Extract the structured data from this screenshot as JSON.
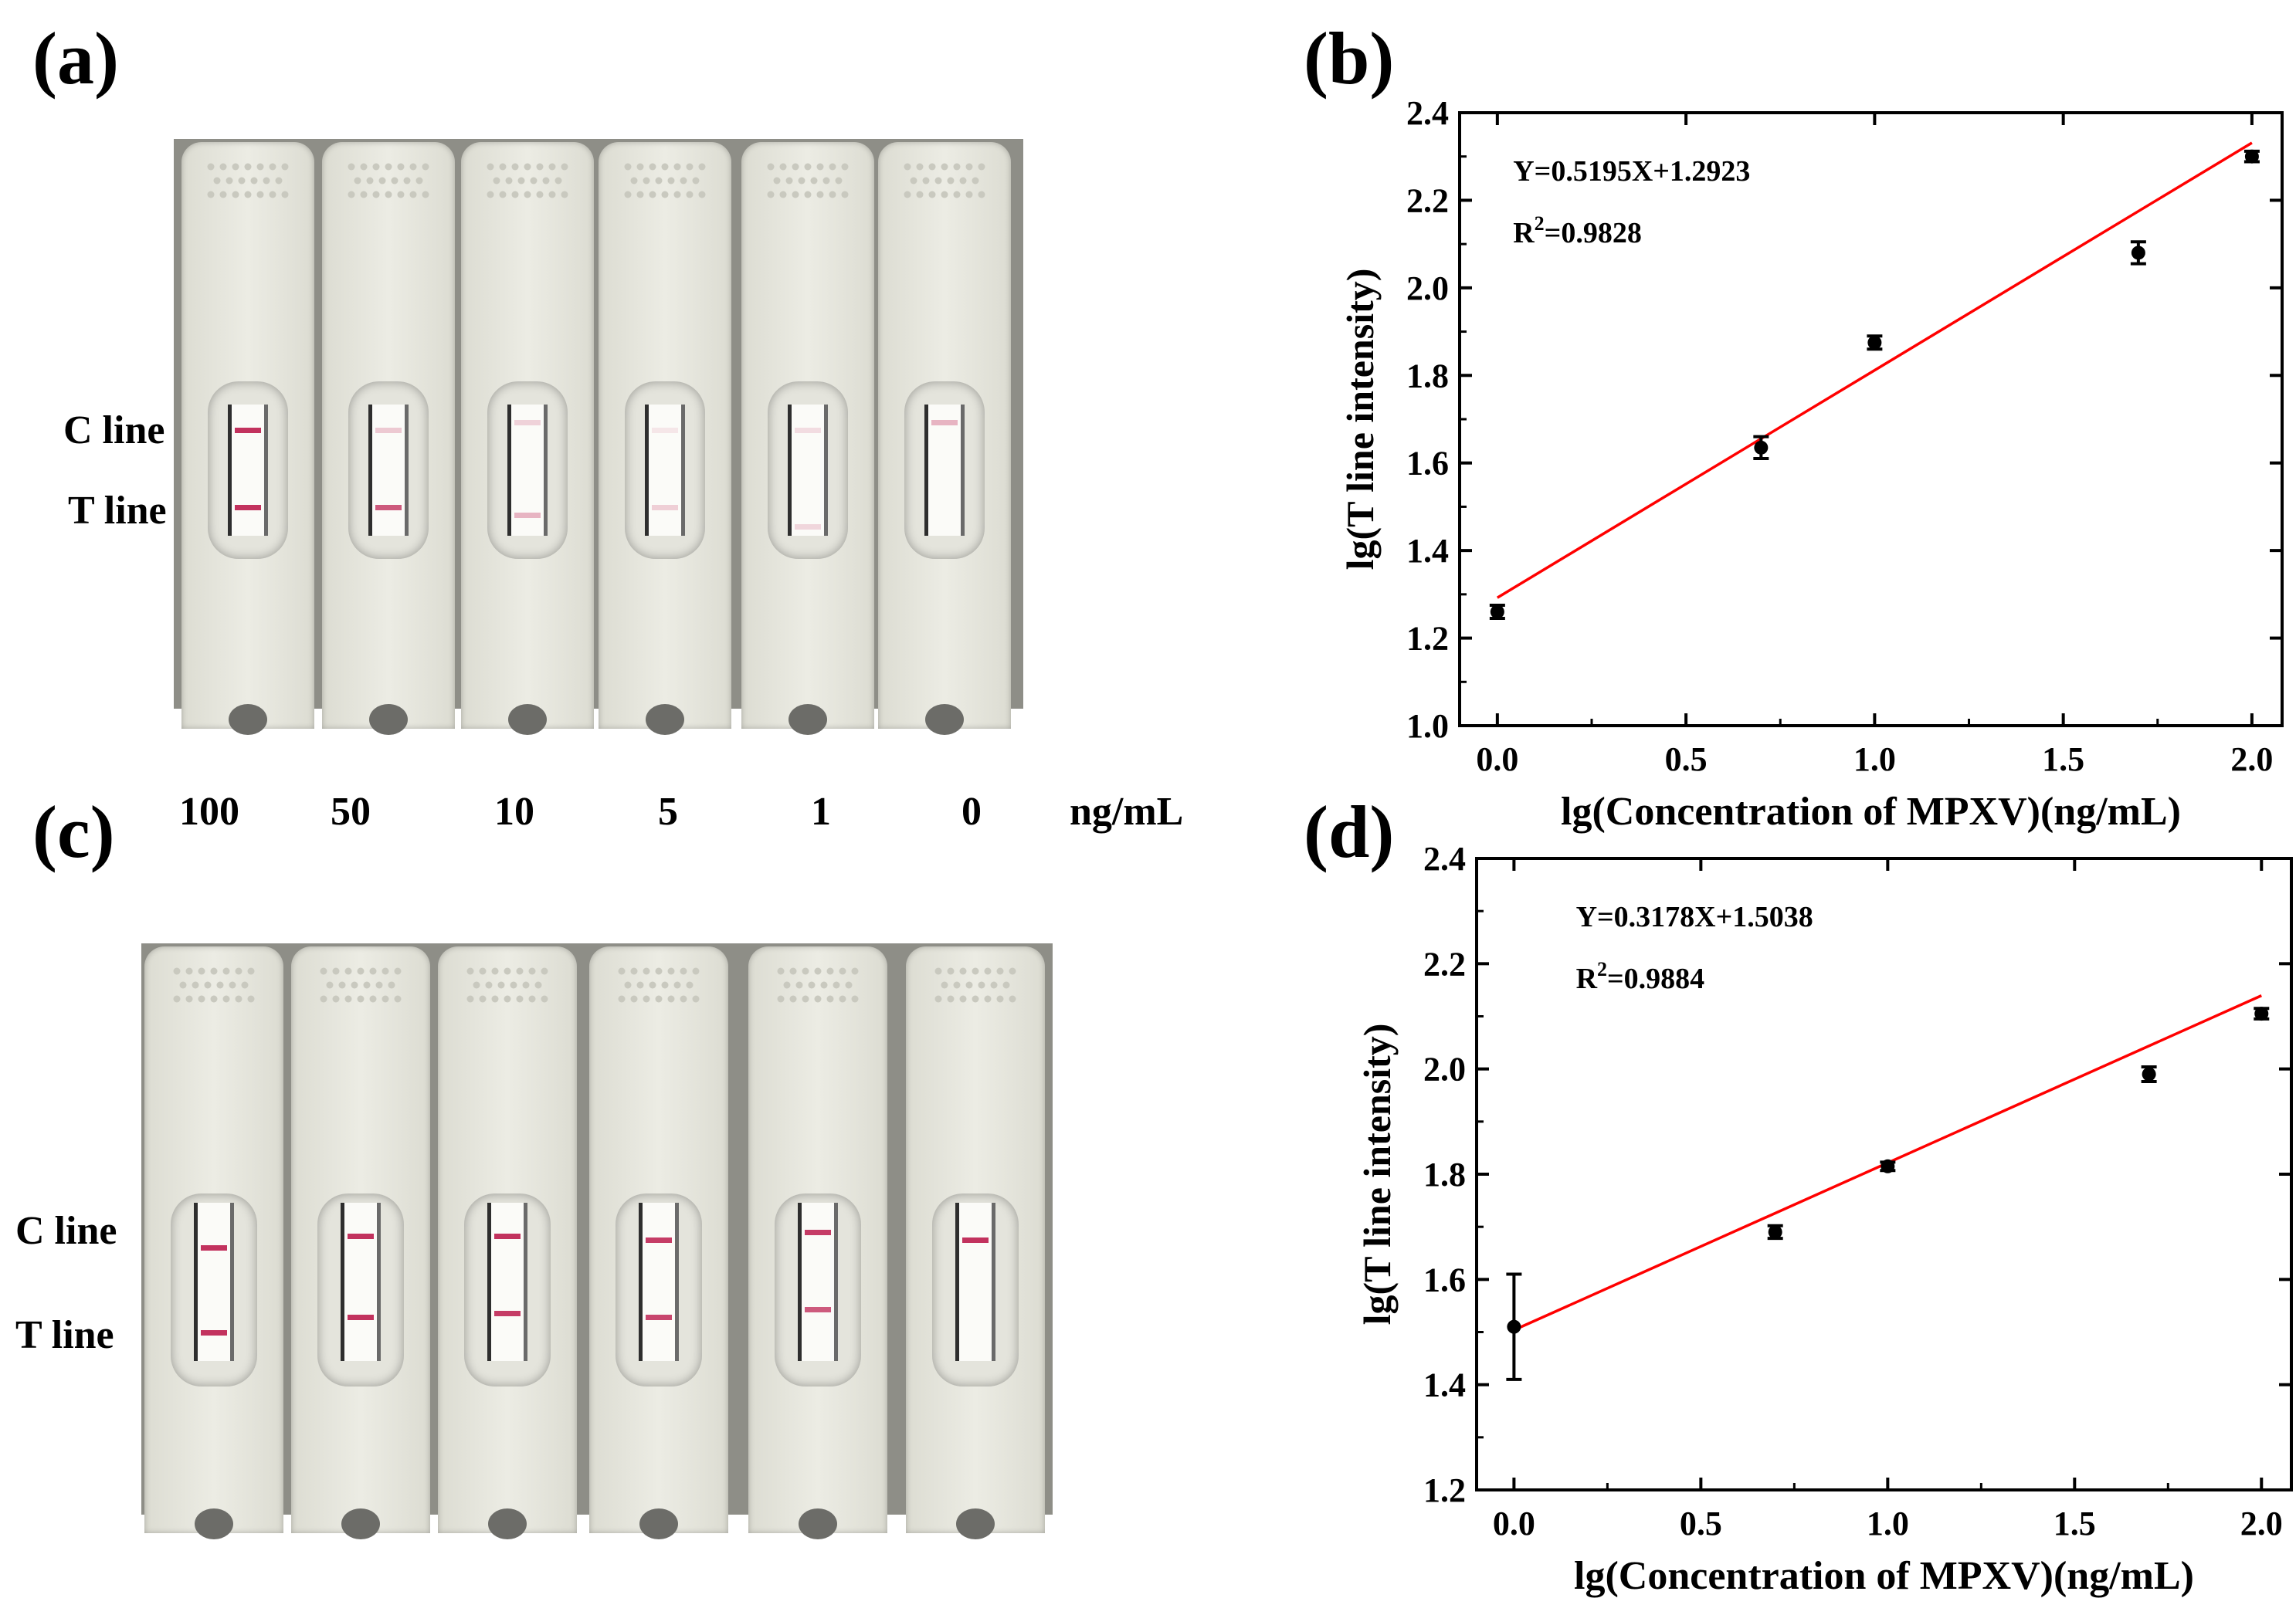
{
  "panels": {
    "a": "(a)",
    "b": "(b)",
    "c": "(c)",
    "d": "(d)"
  },
  "photo_a": {
    "c_line_label": "C line",
    "t_line_label": "T line"
  },
  "photo_c": {
    "c_line_label": "C line",
    "t_line_label": "T line"
  },
  "concentrations": {
    "values": [
      "100",
      "50",
      "10",
      "5",
      "1",
      "0"
    ],
    "unit": "ng/mL"
  },
  "colors": {
    "fit_line": "#ff0000",
    "band": "#c2325e",
    "points": "#000000"
  },
  "chart_data": [
    {
      "panel": "b",
      "type": "scatter",
      "title": "",
      "xlabel": "lg(Concentration of MPXV)(ng/mL)",
      "ylabel": "lg(T line intensity)",
      "xlim": [
        -0.1,
        2.08
      ],
      "ylim": [
        1.0,
        2.4
      ],
      "xticks": [
        0.0,
        0.5,
        1.0,
        1.5,
        2.0
      ],
      "xtick_labels": [
        "0.0",
        "0.5",
        "1.0",
        "1.5",
        "2.0"
      ],
      "yticks": [
        1.0,
        1.2,
        1.4,
        1.6,
        1.8,
        2.0,
        2.2,
        2.4
      ],
      "ytick_labels": [
        "1.0",
        "1.2",
        "1.4",
        "1.6",
        "1.8",
        "2.0",
        "2.2",
        "2.4"
      ],
      "x": [
        0.0,
        0.699,
        1.0,
        1.699,
        2.0
      ],
      "y": [
        1.26,
        1.635,
        1.875,
        2.08,
        2.3
      ],
      "yerr": [
        0.015,
        0.025,
        0.015,
        0.025,
        0.012
      ],
      "fit": {
        "slope": 0.5195,
        "intercept": 1.2923,
        "x_range": [
          0.0,
          2.0
        ]
      },
      "equation": "Y=0.5195X+1.2923",
      "r2_prefix": "R",
      "r2_sup": "2",
      "r2_value": "=0.9828",
      "grid": false
    },
    {
      "panel": "d",
      "type": "scatter",
      "title": "",
      "xlabel": "lg(Concentration of MPXV)(ng/mL)",
      "ylabel": "lg(T line intensity)",
      "xlim": [
        -0.1,
        2.08
      ],
      "ylim": [
        1.2,
        2.4
      ],
      "xticks": [
        0.0,
        0.5,
        1.0,
        1.5,
        2.0
      ],
      "xtick_labels": [
        "0.0",
        "0.5",
        "1.0",
        "1.5",
        "2.0"
      ],
      "yticks": [
        1.2,
        1.4,
        1.6,
        1.8,
        2.0,
        2.2,
        2.4
      ],
      "ytick_labels": [
        "1.2",
        "1.4",
        "1.6",
        "1.8",
        "2.0",
        "2.2",
        "2.4"
      ],
      "x": [
        0.0,
        0.699,
        1.0,
        1.699,
        2.0
      ],
      "y": [
        1.51,
        1.69,
        1.815,
        1.99,
        2.105
      ],
      "yerr": [
        0.1,
        0.012,
        0.008,
        0.014,
        0.01
      ],
      "fit": {
        "slope": 0.3178,
        "intercept": 1.5038,
        "x_range": [
          0.0,
          2.0
        ]
      },
      "equation": "Y=0.3178X+1.5038",
      "r2_prefix": "R",
      "r2_sup": "2",
      "r2_value": "=0.9884",
      "grid": false
    }
  ]
}
